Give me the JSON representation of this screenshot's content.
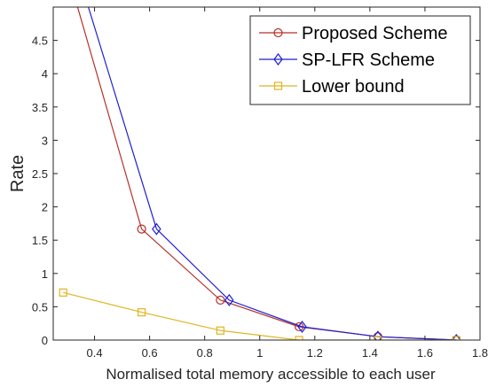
{
  "chart_data": {
    "type": "line",
    "title": "",
    "xlabel": "Normalised total memory accessible to each user",
    "ylabel": "Rate",
    "xlim": [
      0.25,
      1.8
    ],
    "ylim": [
      0,
      5
    ],
    "xticks": [
      0.4,
      0.6,
      0.8,
      1,
      1.2,
      1.4,
      1.6,
      1.8
    ],
    "xtick_labels": [
      "0.4",
      "0.6",
      "0.8",
      "1",
      "1.2",
      "1.4",
      "1.6",
      "1.8"
    ],
    "yticks": [
      0,
      0.5,
      1,
      1.5,
      2,
      2.5,
      3,
      3.5,
      4,
      4.5
    ],
    "ytick_labels": [
      "0",
      "0.5",
      "1",
      "1.5",
      "2",
      "2.5",
      "3",
      "3.5",
      "4",
      "4.5"
    ],
    "grid": false,
    "legend_position": "top-right",
    "series": [
      {
        "name": "Proposed Scheme",
        "color": "#b5312a",
        "marker": "circle",
        "x": [
          0.286,
          0.571,
          0.857,
          1.143,
          1.429,
          1.714
        ],
        "y": [
          5.75,
          1.667,
          0.6,
          0.2,
          0.05,
          0.0
        ]
      },
      {
        "name": "SP-LFR Scheme",
        "color": "#1f1fd0",
        "marker": "diamond",
        "x": [
          0.333,
          0.625,
          0.889,
          1.154,
          1.429,
          1.714
        ],
        "y": [
          5.6,
          1.667,
          0.6,
          0.2,
          0.05,
          0.0
        ]
      },
      {
        "name": "Lower bound",
        "color": "#e0b521",
        "marker": "square",
        "x": [
          0.286,
          0.571,
          0.857,
          1.143,
          1.429,
          1.714
        ],
        "y": [
          0.714,
          0.417,
          0.143,
          0.0,
          0.0,
          0.0
        ]
      }
    ]
  }
}
